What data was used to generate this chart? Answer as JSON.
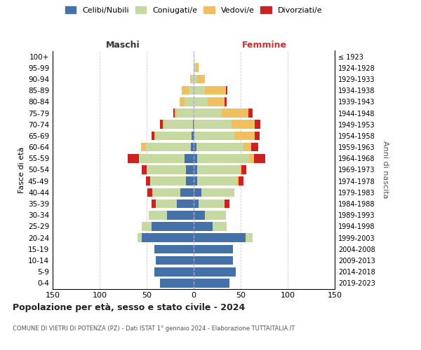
{
  "age_groups": [
    "0-4",
    "5-9",
    "10-14",
    "15-19",
    "20-24",
    "25-29",
    "30-34",
    "35-39",
    "40-44",
    "45-49",
    "50-54",
    "55-59",
    "60-64",
    "65-69",
    "70-74",
    "75-79",
    "80-84",
    "85-89",
    "90-94",
    "95-99",
    "100+"
  ],
  "birth_years": [
    "2019-2023",
    "2014-2018",
    "2009-2013",
    "2004-2008",
    "1999-2003",
    "1994-1998",
    "1989-1993",
    "1984-1988",
    "1979-1983",
    "1974-1978",
    "1969-1973",
    "1964-1968",
    "1959-1963",
    "1954-1958",
    "1949-1953",
    "1944-1948",
    "1939-1943",
    "1934-1938",
    "1929-1933",
    "1924-1928",
    "≤ 1923"
  ],
  "colors": {
    "celibi": "#4472a8",
    "coniugati": "#c5d9a0",
    "vedovi": "#f0c060",
    "divorziati": "#cc2222"
  },
  "legend_labels": [
    "Celibi/Nubili",
    "Coniugati/e",
    "Vedovi/e",
    "Divorziati/e"
  ],
  "male_celibi": [
    36,
    42,
    40,
    42,
    55,
    45,
    28,
    18,
    14,
    8,
    8,
    10,
    3,
    2,
    1,
    0,
    0,
    0,
    0,
    0,
    0
  ],
  "male_coniugati": [
    0,
    0,
    0,
    0,
    5,
    10,
    20,
    22,
    30,
    38,
    42,
    48,
    48,
    38,
    30,
    18,
    10,
    5,
    2,
    0,
    0
  ],
  "male_vedovi": [
    0,
    0,
    0,
    0,
    0,
    0,
    0,
    0,
    0,
    0,
    0,
    0,
    5,
    2,
    2,
    2,
    5,
    8,
    2,
    0,
    0
  ],
  "male_divorziati": [
    0,
    0,
    0,
    0,
    0,
    0,
    0,
    5,
    5,
    5,
    5,
    12,
    0,
    3,
    3,
    2,
    0,
    0,
    0,
    0,
    0
  ],
  "fem_nubili": [
    38,
    45,
    42,
    42,
    55,
    20,
    12,
    5,
    8,
    4,
    4,
    4,
    3,
    1,
    0,
    0,
    0,
    0,
    0,
    0,
    0
  ],
  "fem_coniugate": [
    0,
    0,
    0,
    0,
    8,
    15,
    22,
    28,
    35,
    42,
    45,
    55,
    50,
    42,
    40,
    30,
    15,
    12,
    4,
    2,
    0
  ],
  "fem_vedove": [
    0,
    0,
    0,
    0,
    0,
    0,
    0,
    0,
    0,
    2,
    2,
    5,
    8,
    22,
    25,
    28,
    18,
    22,
    8,
    3,
    0
  ],
  "fem_divorziate": [
    0,
    0,
    0,
    0,
    0,
    0,
    0,
    5,
    0,
    5,
    5,
    12,
    8,
    5,
    6,
    5,
    2,
    2,
    0,
    0,
    0
  ],
  "title": "Popolazione per età, sesso e stato civile - 2024",
  "subtitle": "COMUNE DI VIETRI DI POTENZA (PZ) - Dati ISTAT 1° gennaio 2024 - Elaborazione TUTTAITALIA.IT",
  "label_maschi": "Maschi",
  "label_femmine": "Femmine",
  "ylabel_left": "Fasce di età",
  "ylabel_right": "Anni di nascita",
  "xlim": 150
}
